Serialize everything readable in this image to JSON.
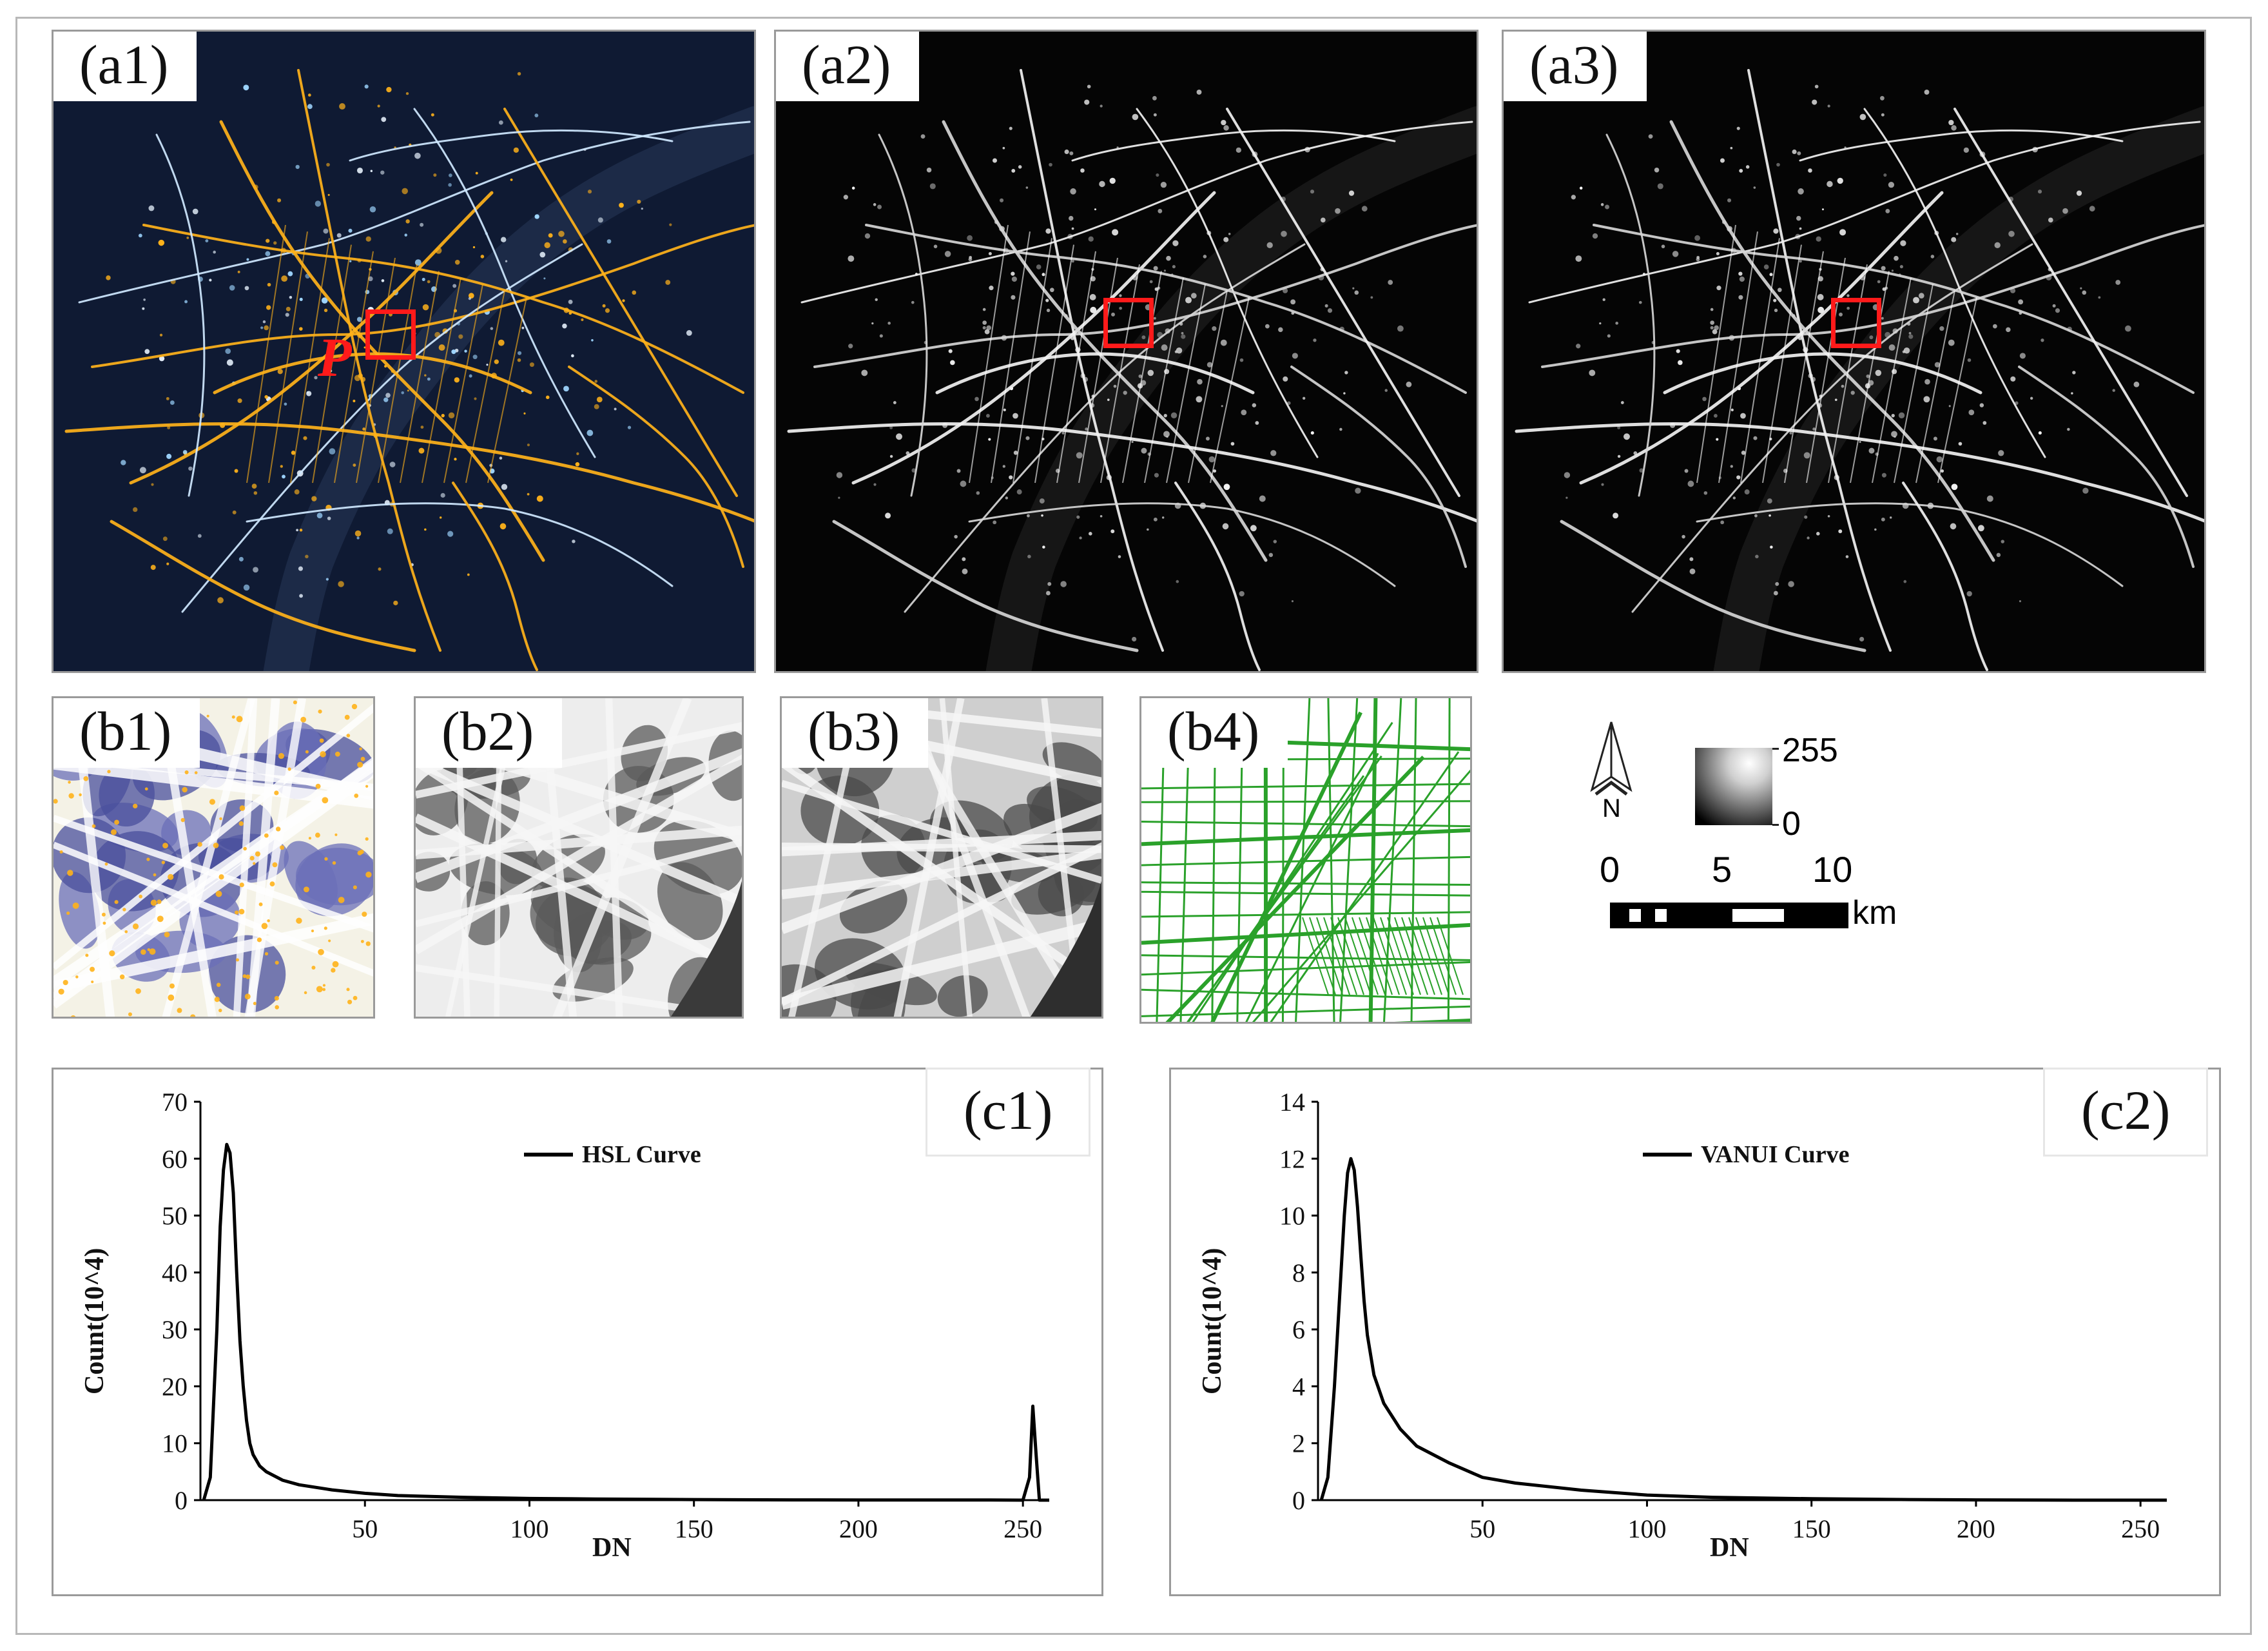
{
  "panels": {
    "a1": "(a1)",
    "a2": "(a2)",
    "a3": "(a3)",
    "b1": "(b1)",
    "b2": "(b2)",
    "b3": "(b3)",
    "b4": "(b4)",
    "c1": "(c1)",
    "c2": "(c2)"
  },
  "point_label": "P",
  "map_legend": {
    "north": "N",
    "ramp_max": "255",
    "ramp_min": "0",
    "scale_ticks": [
      "0",
      "5",
      "10"
    ],
    "scale_unit": "km"
  },
  "colors": {
    "night_bg": "#0f1a33",
    "road_orange": "#ffb21a",
    "light_blue": "#9fd6ff",
    "selection": "#ff1a1a",
    "road_green": "#2aa12a"
  },
  "chart_data": [
    {
      "type": "line",
      "legend": [
        "HSL Curve"
      ],
      "xlabel": "DN",
      "ylabel": "Count(10^4)",
      "xlim": [
        0,
        258
      ],
      "ylim": [
        0,
        70
      ],
      "xticks": [
        50,
        100,
        150,
        200,
        250
      ],
      "yticks": [
        0,
        10,
        20,
        30,
        40,
        50,
        60,
        70
      ],
      "series": [
        {
          "name": "HSL Curve",
          "x": [
            1,
            3,
            5,
            6,
            7,
            8,
            9,
            10,
            11,
            12,
            13,
            14,
            15,
            16,
            18,
            20,
            25,
            30,
            40,
            50,
            60,
            80,
            100,
            120,
            150,
            180,
            200,
            220,
            240,
            250,
            252,
            253,
            254,
            255,
            256,
            258
          ],
          "y": [
            0,
            4,
            30,
            48,
            58,
            62.5,
            61,
            54,
            40,
            28,
            20,
            14,
            10,
            8,
            6,
            5,
            3.5,
            2.7,
            1.8,
            1.2,
            0.8,
            0.5,
            0.3,
            0.2,
            0.1,
            0.05,
            0.03,
            0.02,
            0.02,
            0,
            4,
            16.5,
            8,
            0,
            0,
            0
          ]
        }
      ]
    },
    {
      "type": "line",
      "legend": [
        "VANUI Curve"
      ],
      "xlabel": "DN",
      "ylabel": "Count(10^4)",
      "xlim": [
        0,
        258
      ],
      "ylim": [
        0,
        14
      ],
      "xticks": [
        50,
        100,
        150,
        200,
        250
      ],
      "yticks": [
        0,
        2,
        4,
        6,
        8,
        10,
        12,
        14
      ],
      "series": [
        {
          "name": "VANUI Curve",
          "x": [
            1,
            3,
            5,
            7,
            8,
            9,
            10,
            11,
            12,
            13,
            14,
            15,
            17,
            20,
            25,
            30,
            40,
            50,
            60,
            80,
            100,
            120,
            150,
            180,
            200,
            230,
            258
          ],
          "y": [
            0,
            0.8,
            4,
            8,
            10,
            11.5,
            12,
            11.6,
            10.3,
            8.6,
            7,
            5.8,
            4.4,
            3.4,
            2.5,
            1.9,
            1.3,
            0.8,
            0.6,
            0.35,
            0.18,
            0.1,
            0.05,
            0.02,
            0.01,
            0,
            0
          ]
        }
      ]
    }
  ]
}
